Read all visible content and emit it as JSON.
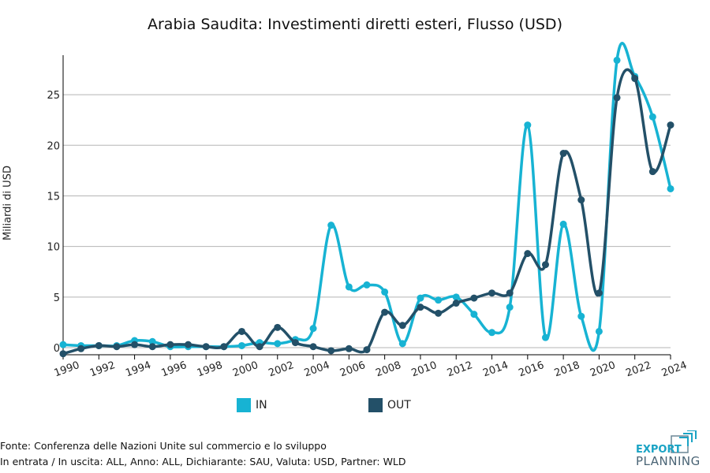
{
  "chart_data": {
    "type": "line",
    "title": "Arabia Saudita: Investimenti diretti esteri, Flusso (USD)",
    "xlabel": "",
    "ylabel": "Miliardi di USD",
    "x": [
      1990,
      1991,
      1992,
      1993,
      1994,
      1995,
      1996,
      1997,
      1998,
      1999,
      2000,
      2001,
      2002,
      2003,
      2004,
      2005,
      2006,
      2007,
      2008,
      2009,
      2010,
      2011,
      2012,
      2013,
      2014,
      2015,
      2016,
      2017,
      2018,
      2019,
      2020,
      2021,
      2022,
      2023,
      2024
    ],
    "xticks": [
      "1990",
      "1992",
      "1994",
      "1996",
      "1998",
      "2000",
      "2002",
      "2004",
      "2006",
      "2008",
      "2010",
      "2012",
      "2014",
      "2016",
      "2018",
      "2020",
      "2022",
      "2024"
    ],
    "yticks": [
      "0",
      "5",
      "10",
      "15",
      "20",
      "25"
    ],
    "ylim": [
      -0.7,
      28.9
    ],
    "xlim": [
      1990,
      2024
    ],
    "grid": true,
    "legend_position": "bottom",
    "series": [
      {
        "name": "IN",
        "color": "#17b3d3",
        "values": [
          0.3,
          0.2,
          0.2,
          0.2,
          0.7,
          0.6,
          0.1,
          0.1,
          0.1,
          0.1,
          0.2,
          0.5,
          0.4,
          0.8,
          1.9,
          12.1,
          6.0,
          6.2,
          5.5,
          0.4,
          4.9,
          4.7,
          5.0,
          3.3,
          1.5,
          4.0,
          22.0,
          1.0,
          12.2,
          3.1,
          1.6,
          28.4,
          26.8,
          22.8,
          15.7
        ]
      },
      {
        "name": "OUT",
        "color": "#235068",
        "values": [
          -0.6,
          -0.1,
          0.2,
          0.1,
          0.3,
          0.1,
          0.3,
          0.3,
          0.1,
          0.1,
          1.6,
          0.1,
          2.0,
          0.5,
          0.1,
          -0.3,
          -0.1,
          -0.2,
          3.5,
          2.2,
          4.0,
          3.4,
          4.4,
          4.9,
          5.4,
          5.4,
          9.3,
          8.2,
          19.2,
          14.6,
          5.4,
          24.7,
          26.6,
          17.4,
          22.0
        ]
      }
    ]
  },
  "footer": {
    "source": "Fonte: Conferenza delle Nazioni Unite sul commercio e lo sviluppo",
    "filters": "In entrata / In uscita: ALL, Anno: ALL, Dichiarante: SAU, Valuta: USD, Partner: WLD"
  },
  "logo": {
    "line1": "EXPORT",
    "line2": "PLANNING"
  }
}
